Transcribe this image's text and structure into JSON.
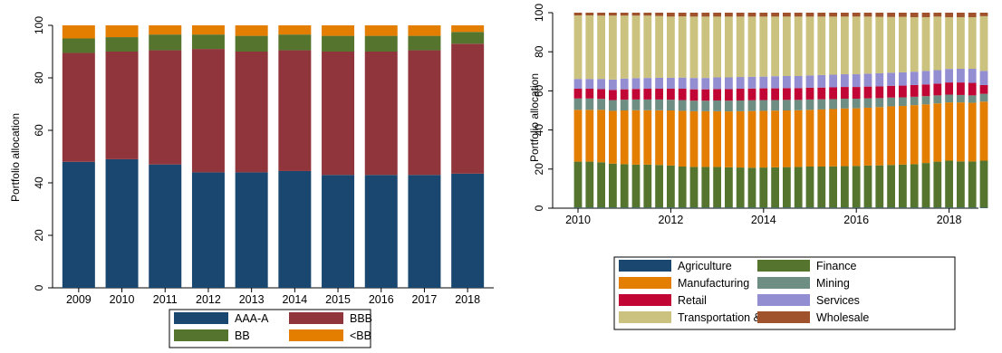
{
  "chart_data": [
    {
      "type": "bar",
      "stacked": true,
      "ylabel": "Portfolio allocation",
      "xlabel": "",
      "title": "",
      "ylim": [
        0,
        100
      ],
      "yticks": [
        0,
        20,
        40,
        60,
        80,
        100
      ],
      "categories": [
        "2009",
        "2010",
        "2011",
        "2012",
        "2013",
        "2014",
        "2015",
        "2016",
        "2017",
        "2018"
      ],
      "series": [
        {
          "name": "AAA-A",
          "color": "#1a476f",
          "values": [
            48,
            49,
            47,
            44,
            44,
            44.5,
            43,
            43,
            43,
            43.5
          ]
        },
        {
          "name": "BBB",
          "color": "#90353b",
          "values": [
            41.5,
            41,
            43.5,
            47,
            46,
            46,
            47,
            47,
            47.5,
            49.5
          ]
        },
        {
          "name": "BB",
          "color": "#55752f",
          "values": [
            5.5,
            5.5,
            6,
            5.5,
            6,
            6,
            6,
            6,
            5.5,
            4.5
          ]
        },
        {
          "name": "<BB",
          "color": "#e37e00",
          "values": [
            5,
            4.5,
            3.5,
            3.5,
            4,
            3.5,
            4,
            4,
            4,
            2.5
          ]
        }
      ],
      "legend_position": "bottom",
      "grid": false
    },
    {
      "type": "bar",
      "stacked": true,
      "ylabel": "Portfolio allocation",
      "xlabel": "",
      "title": "",
      "ylim": [
        0,
        100
      ],
      "yticks": [
        0,
        20,
        40,
        60,
        80,
        100
      ],
      "xticks": [
        2010,
        2012,
        2014,
        2016,
        2018
      ],
      "x": [
        2010.0,
        2010.25,
        2010.5,
        2010.75,
        2011.0,
        2011.25,
        2011.5,
        2011.75,
        2012.0,
        2012.25,
        2012.5,
        2012.75,
        2013.0,
        2013.25,
        2013.5,
        2013.75,
        2014.0,
        2014.25,
        2014.5,
        2014.75,
        2015.0,
        2015.25,
        2015.5,
        2015.75,
        2016.0,
        2016.25,
        2016.5,
        2016.75,
        2017.0,
        2017.25,
        2017.5,
        2017.75,
        2018.0,
        2018.25,
        2018.5,
        2018.75
      ],
      "series": [
        {
          "name": "Agriculture",
          "color": "#1a476f",
          "values": [
            0.3,
            0.3,
            0.3,
            0.3,
            0.3,
            0.3,
            0.3,
            0.3,
            0.3,
            0.3,
            0.3,
            0.3,
            0.3,
            0.3,
            0.3,
            0.3,
            0.3,
            0.3,
            0.3,
            0.3,
            0.3,
            0.3,
            0.3,
            0.3,
            0.3,
            0.3,
            0.3,
            0.3,
            0.3,
            0.3,
            0.3,
            0.3,
            0.3,
            0.3,
            0.3,
            0.3
          ]
        },
        {
          "name": "Finance",
          "color": "#55752f",
          "values": [
            23.5,
            23.5,
            23.2,
            22.5,
            22.2,
            22.0,
            22.0,
            21.8,
            21.5,
            21.0,
            20.8,
            20.8,
            20.8,
            20.6,
            20.5,
            20.4,
            20.5,
            20.6,
            20.7,
            20.8,
            21.0,
            21.0,
            21.1,
            21.2,
            21.3,
            21.5,
            21.6,
            21.8,
            22.0,
            22.2,
            22.8,
            23.5,
            24.0,
            23.6,
            23.6,
            24.0
          ]
        },
        {
          "name": "Manufacturing",
          "color": "#e37e00",
          "values": [
            26.5,
            26.5,
            26.8,
            27.0,
            27.5,
            27.8,
            27.8,
            28.0,
            28.2,
            28.5,
            28.5,
            28.5,
            28.5,
            28.6,
            28.8,
            29.0,
            29.0,
            29.0,
            29.0,
            29.0,
            29.0,
            29.2,
            29.3,
            29.5,
            29.5,
            29.6,
            29.8,
            30.0,
            30.0,
            30.2,
            30.0,
            29.8,
            29.8,
            30.2,
            30.0,
            30.2
          ]
        },
        {
          "name": "Mining",
          "color": "#6e8e84",
          "values": [
            5.8,
            5.8,
            5.6,
            5.5,
            5.5,
            5.5,
            5.5,
            5.5,
            5.5,
            5.5,
            5.4,
            5.4,
            5.5,
            5.5,
            5.5,
            5.5,
            5.5,
            5.4,
            5.4,
            5.3,
            5.3,
            5.2,
            5.1,
            5.0,
            4.9,
            4.8,
            4.6,
            4.5,
            4.4,
            4.3,
            4.2,
            4.1,
            4.0,
            3.8,
            3.8,
            4.0
          ]
        },
        {
          "name": "Retail",
          "color": "#c10534",
          "values": [
            5.0,
            5.0,
            5.0,
            5.2,
            5.3,
            5.4,
            5.5,
            5.5,
            5.6,
            5.8,
            5.8,
            5.8,
            5.8,
            5.9,
            6.0,
            6.0,
            6.0,
            6.0,
            6.0,
            6.0,
            6.0,
            6.0,
            6.0,
            6.0,
            6.0,
            6.0,
            6.0,
            6.0,
            6.0,
            6.0,
            6.0,
            6.0,
            6.2,
            6.4,
            6.4,
            4.5
          ]
        },
        {
          "name": "Services",
          "color": "#938dd2",
          "values": [
            5.0,
            5.0,
            5.2,
            5.3,
            5.5,
            5.5,
            5.5,
            5.6,
            5.6,
            5.7,
            5.8,
            5.8,
            6.0,
            6.0,
            6.0,
            6.0,
            6.0,
            6.2,
            6.2,
            6.2,
            6.3,
            6.4,
            6.5,
            6.5,
            6.5,
            6.6,
            6.7,
            6.7,
            6.8,
            6.8,
            6.9,
            6.9,
            6.9,
            7.0,
            7.2,
            7.2
          ]
        },
        {
          "name": "Transportation & Utilities",
          "color": "#cac27e",
          "values": [
            32.5,
            32.5,
            32.4,
            32.7,
            32.2,
            32.0,
            31.9,
            31.6,
            31.3,
            31.3,
            31.4,
            31.4,
            31.1,
            31.1,
            30.9,
            30.8,
            30.7,
            30.5,
            30.4,
            30.4,
            30.1,
            29.9,
            29.7,
            29.5,
            29.5,
            29.2,
            28.9,
            28.5,
            28.4,
            27.9,
            27.5,
            27.4,
            26.5,
            26.4,
            26.4,
            28.0
          ]
        },
        {
          "name": "Wholesale",
          "color": "#a0522d",
          "values": [
            1.4,
            1.4,
            1.5,
            1.5,
            1.5,
            1.5,
            1.5,
            1.7,
            2.0,
            1.9,
            2.0,
            2.0,
            2.0,
            2.0,
            2.0,
            2.0,
            2.0,
            2.0,
            2.0,
            2.0,
            2.0,
            2.0,
            2.0,
            2.0,
            2.0,
            2.0,
            2.1,
            2.2,
            2.1,
            2.3,
            2.3,
            2.0,
            2.3,
            2.3,
            2.3,
            1.8
          ]
        }
      ],
      "legend_position": "bottom",
      "grid": false
    }
  ]
}
